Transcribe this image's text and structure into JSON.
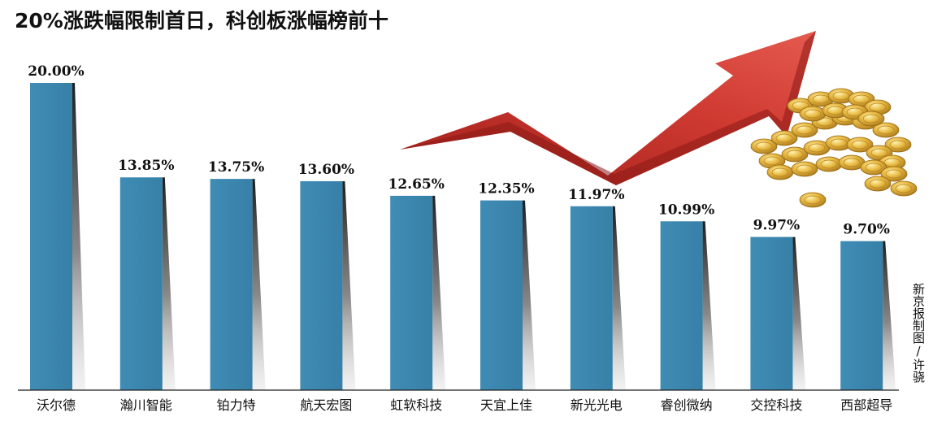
{
  "title": "20%涨跌幅限制首日，科创板涨幅榜前十",
  "credit": "新京报制图/许骁",
  "colors": {
    "bar": "#3a86ae",
    "bar_top": "#4592bb",
    "arrow": "#c8332c",
    "coin": "#e2b13c",
    "axis": "#222222"
  },
  "icons": {
    "arrow": "rising-red-arrow-icon",
    "coins": "gold-coin-pile-icon"
  },
  "chart_data": {
    "type": "bar",
    "title": "20%涨跌幅限制首日，科创板涨幅榜前十",
    "xlabel": "",
    "ylabel": "",
    "ylim": [
      0,
      20
    ],
    "grid": false,
    "legend": "none",
    "categories": [
      "沃尔德",
      "瀚川智能",
      "铂力特",
      "航天宏图",
      "虹软科技",
      "天宜上佳",
      "新光光电",
      "睿创微纳",
      "交控科技",
      "西部超导"
    ],
    "values": [
      20.0,
      13.85,
      13.75,
      13.6,
      12.65,
      12.35,
      11.97,
      10.99,
      9.97,
      9.7
    ],
    "value_labels": [
      "20.00%",
      "13.85%",
      "13.75%",
      "13.60%",
      "12.65%",
      "12.35%",
      "11.97%",
      "10.99%",
      "9.97%",
      "9.70%"
    ]
  }
}
